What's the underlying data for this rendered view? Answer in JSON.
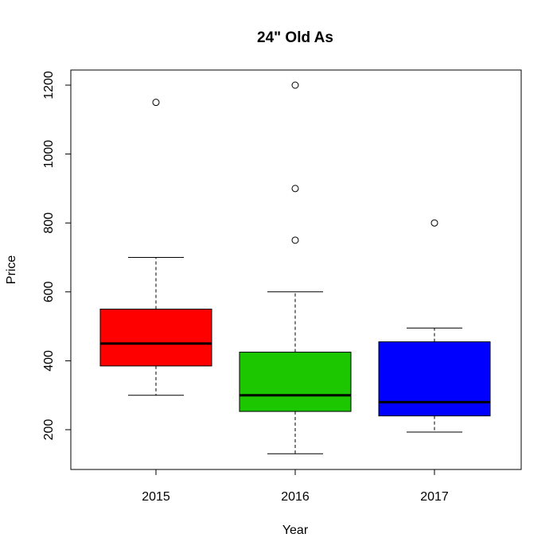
{
  "chart_data": {
    "type": "boxplot",
    "title": "24\" Old As",
    "xlabel": "Year",
    "ylabel": "Price",
    "categories": [
      "2015",
      "2016",
      "2017"
    ],
    "yticks": [
      200,
      400,
      600,
      800,
      1000,
      1200
    ],
    "ylim": [
      88,
      1250
    ],
    "boxes": [
      {
        "category": "2015",
        "whisker_low": 300,
        "q1": 385,
        "median": 450,
        "q3": 550,
        "whisker_high": 700,
        "outliers": [
          1150
        ],
        "color": "#ff0000"
      },
      {
        "category": "2016",
        "whisker_low": 130,
        "q1": 253,
        "median": 300,
        "q3": 425,
        "whisker_high": 600,
        "outliers": [
          750,
          900,
          1200
        ],
        "color": "#1cc700"
      },
      {
        "category": "2017",
        "whisker_low": 193,
        "q1": 240,
        "median": 280,
        "q3": 455,
        "whisker_high": 495,
        "outliers": [
          800
        ],
        "color": "#0000ff"
      }
    ]
  }
}
